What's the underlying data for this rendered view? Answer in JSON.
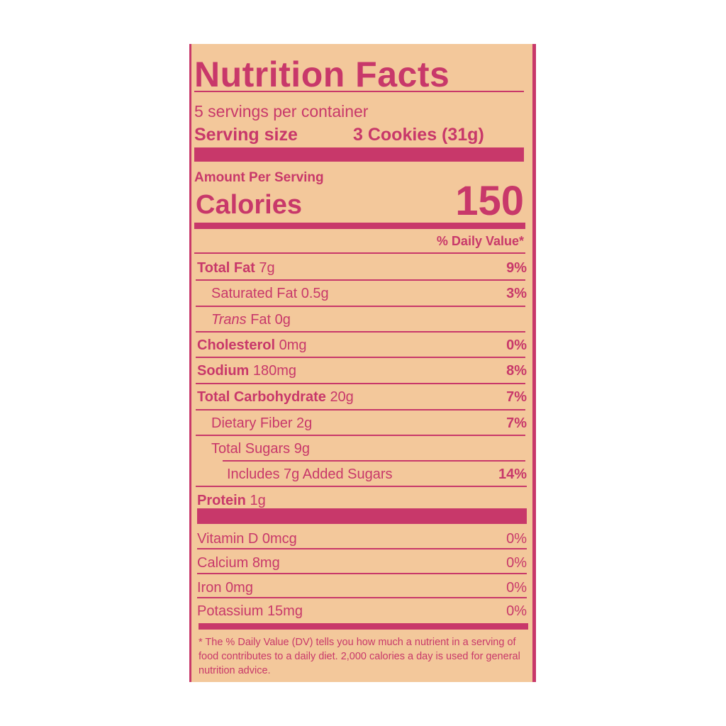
{
  "title": "Nutrition Facts",
  "servings_per_container": "5 servings per container",
  "serving_size_label": "Serving size",
  "serving_size_value": "3 Cookies (31g)",
  "amount_per_serving": "Amount Per Serving",
  "calories_label": "Calories",
  "calories_value": "150",
  "daily_value_header": "% Daily Value*",
  "nutrients": [
    {
      "name": "Total Fat",
      "amount": "7g",
      "dv": "9%"
    },
    {
      "name": "Saturated Fat",
      "amount": "0.5g",
      "dv": "3%"
    },
    {
      "name": "Trans",
      "name2": "Fat",
      "amount": "0g",
      "dv": ""
    },
    {
      "name": "Cholesterol",
      "amount": "0mg",
      "dv": "0%"
    },
    {
      "name": "Sodium",
      "amount": "180mg",
      "dv": "8%"
    },
    {
      "name": "Total Carbohydrate",
      "amount": "20g",
      "dv": "7%"
    },
    {
      "name": "Dietary Fiber",
      "amount": "2g",
      "dv": "7%"
    },
    {
      "name": "Total Sugars",
      "amount": "9g",
      "dv": ""
    },
    {
      "name": "Includes 7g Added Sugars",
      "amount": "",
      "dv": "14%"
    },
    {
      "name": "Protein",
      "amount": "1g",
      "dv": ""
    }
  ],
  "vitamins": [
    {
      "name": "Vitamin D",
      "amount": "0mcg",
      "dv": "0%"
    },
    {
      "name": "Calcium",
      "amount": "8mg",
      "dv": "0%"
    },
    {
      "name": "Iron",
      "amount": "0mg",
      "dv": "0%"
    },
    {
      "name": "Potassium",
      "amount": "15mg",
      "dv": "0%"
    }
  ],
  "footnote": "* The % Daily Value (DV) tells you how much a nutrient in a serving of food contributes to a daily diet. 2,000 calories a day is used for general nutrition advice.",
  "colors": {
    "ink": "#c8386a",
    "background": "#f3c89b"
  }
}
